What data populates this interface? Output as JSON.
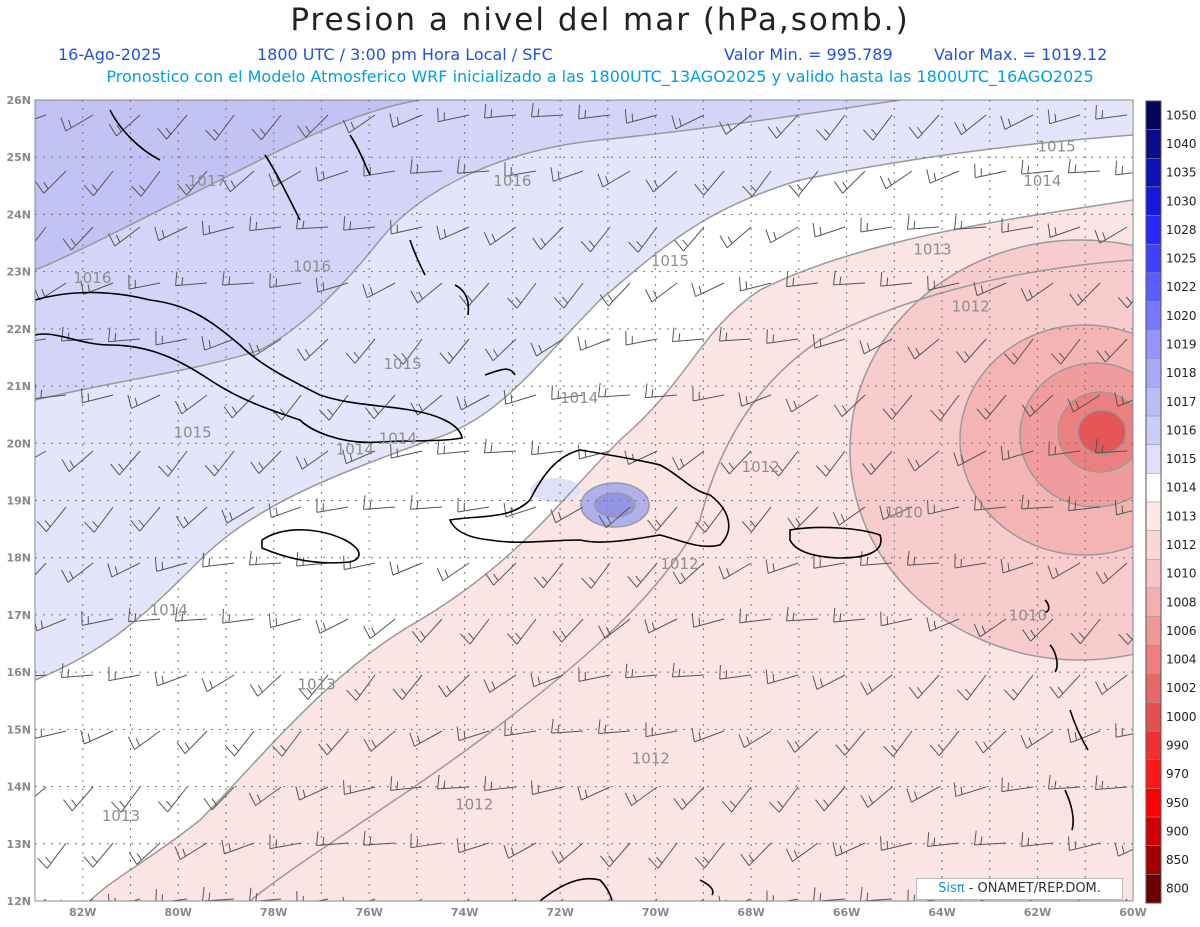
{
  "header": {
    "title": "Presion a nivel del mar (hPa,somb.)",
    "date": "16-Ago-2025",
    "time": "1800 UTC / 3:00 pm Hora Local / SFC",
    "min_label": "Valor Min. = 995.789",
    "max_label": "Valor Max. = 1019.12",
    "model_line": "Pronostico con el Modelo Atmosferico WRF inicializado a las 1800UTC_13AGO2025 y valido hasta las  1800UTC_16AGO2025"
  },
  "axes": {
    "lat_labels": [
      "26N",
      "25N",
      "24N",
      "23N",
      "22N",
      "21N",
      "20N",
      "19N",
      "18N",
      "17N",
      "16N",
      "15N",
      "14N",
      "13N",
      "12N"
    ],
    "lon_labels": [
      "82W",
      "80W",
      "78W",
      "76W",
      "74W",
      "72W",
      "70W",
      "68W",
      "66W",
      "64W",
      "62W",
      "60W"
    ]
  },
  "colorbar": {
    "levels": [
      "1050",
      "1040",
      "1035",
      "1030",
      "1028",
      "1025",
      "1022",
      "1020",
      "1019",
      "1018",
      "1017",
      "1016",
      "1015",
      "1014",
      "1013",
      "1012",
      "1010",
      "1008",
      "1006",
      "1004",
      "1002",
      "1000",
      "990",
      "970",
      "950",
      "900",
      "850",
      "800"
    ],
    "colors": [
      "#05055a",
      "#0a0a8c",
      "#1010b4",
      "#1818dc",
      "#2828ff",
      "#4040ff",
      "#5c5cff",
      "#7878ff",
      "#9494ff",
      "#a8a8f8",
      "#bcbcf4",
      "#ccccf8",
      "#e0e0fa",
      "#ffffff",
      "#fde8e8",
      "#fbd8d8",
      "#f8c4c4",
      "#f4b0b0",
      "#f09898",
      "#ec8080",
      "#e86868",
      "#e45050",
      "#f03030",
      "#ff1818",
      "#ff0000",
      "#d00000",
      "#a00000",
      "#6c0000"
    ]
  },
  "contour_labels": [
    {
      "text": "1017",
      "lon": -79.4,
      "lat": 24.5
    },
    {
      "text": "1016",
      "lon": -77.2,
      "lat": 23.0
    },
    {
      "text": "1016",
      "lon": -73.0,
      "lat": 24.5
    },
    {
      "text": "1016",
      "lon": -81.8,
      "lat": 22.8
    },
    {
      "text": "1015",
      "lon": -75.3,
      "lat": 21.3
    },
    {
      "text": "1015",
      "lon": -69.7,
      "lat": 23.1
    },
    {
      "text": "1015",
      "lon": -79.7,
      "lat": 20.1
    },
    {
      "text": "1015",
      "lon": -61.6,
      "lat": 25.1
    },
    {
      "text": "1014",
      "lon": -61.9,
      "lat": 24.5
    },
    {
      "text": "1014",
      "lon": -75.4,
      "lat": 20.0
    },
    {
      "text": "1014",
      "lon": -76.3,
      "lat": 19.8
    },
    {
      "text": "1014",
      "lon": -71.6,
      "lat": 20.7
    },
    {
      "text": "1014",
      "lon": -80.2,
      "lat": 17.0
    },
    {
      "text": "1013",
      "lon": -64.2,
      "lat": 23.3
    },
    {
      "text": "1013",
      "lon": -77.1,
      "lat": 15.7
    },
    {
      "text": "1013",
      "lon": -81.2,
      "lat": 13.4
    },
    {
      "text": "1012",
      "lon": -63.4,
      "lat": 22.3
    },
    {
      "text": "1012",
      "lon": -67.8,
      "lat": 19.5
    },
    {
      "text": "1012",
      "lon": -69.5,
      "lat": 17.8
    },
    {
      "text": "1012",
      "lon": -70.1,
      "lat": 14.4
    },
    {
      "text": "1012",
      "lon": -73.8,
      "lat": 13.6
    },
    {
      "text": "1010",
      "lon": -64.8,
      "lat": 18.7
    },
    {
      "text": "1010",
      "lon": -62.2,
      "lat": 16.9
    }
  ],
  "credit": {
    "brand": "Sisπ",
    "text": " - ONAMET/REP.DOM."
  }
}
